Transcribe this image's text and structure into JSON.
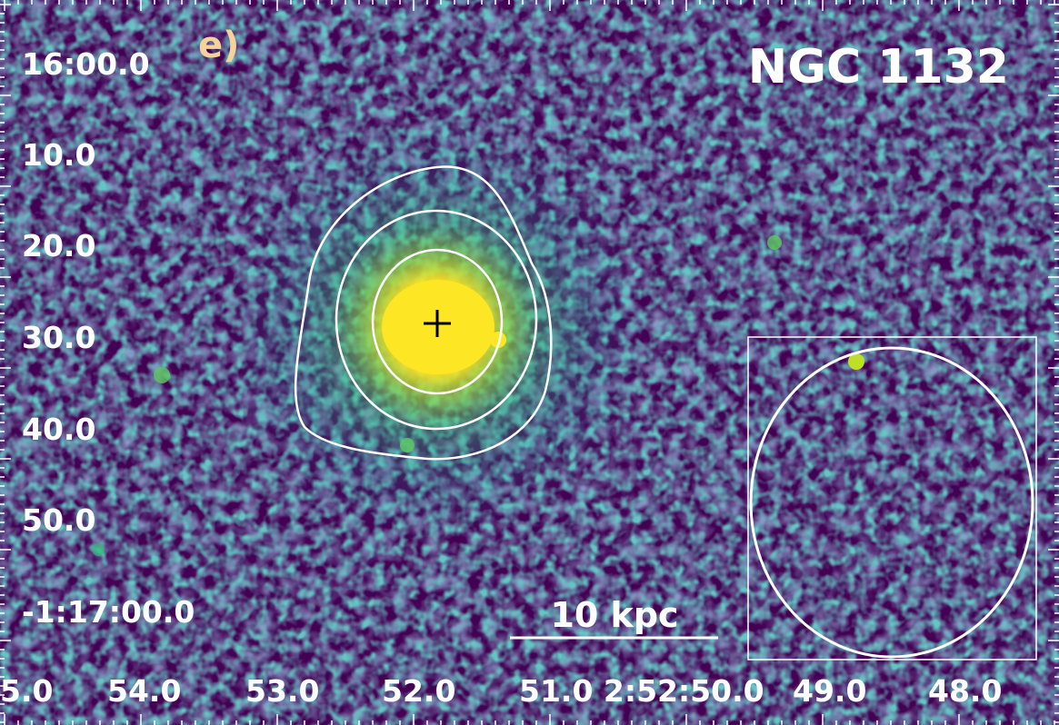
{
  "image": {
    "object_name": "NGC 1132",
    "panel_label": "e)",
    "scale_bar_label": "10 kpc",
    "colors": {
      "background": "#440154",
      "mid": "#21918c",
      "bright": "#fde725",
      "contours": "#ffffff",
      "center_marker": "#000000",
      "panel_label": "#f4d39a"
    }
  },
  "axes": {
    "dec_tick_labels": [
      "16:00.0",
      "10.0",
      "20.0",
      "30.0",
      "40.0",
      "50.0",
      "-1:17:00.0"
    ],
    "ra_tick_labels": [
      "5.0",
      "54.0",
      "53.0",
      "52.0",
      "51.0 2:52:50.0",
      "49.0",
      "48.0"
    ]
  },
  "overlays": {
    "contour_count": 3,
    "center_marker": "cross",
    "background_region": "ellipse inside rectangle"
  }
}
